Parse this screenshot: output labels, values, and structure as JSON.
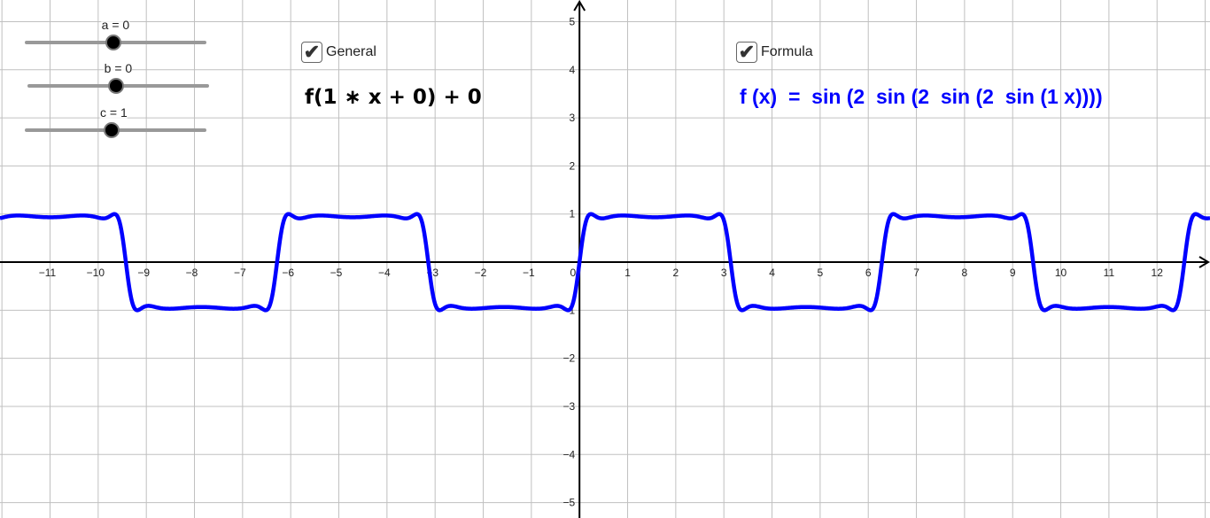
{
  "sliders": [
    {
      "label": "a = 0",
      "name": "a",
      "value": 0,
      "fraction": 0.49
    },
    {
      "label": "b = 0",
      "name": "b",
      "value": 0,
      "fraction": 0.49
    },
    {
      "label": "c = 1",
      "name": "c",
      "value": 1,
      "fraction": 0.48
    }
  ],
  "checkboxes": {
    "general": {
      "label": "General",
      "checked": true
    },
    "formula": {
      "label": "Formula",
      "checked": true
    }
  },
  "general_text": "f(1 ∗ x + 0) + 0",
  "formula_text": "f (x)  =  sin (2  sin (2  sin (2  sin (1 x))))",
  "colors": {
    "curve": "#0000ff",
    "formula": "#0000ff",
    "grid": "#c0c0c0",
    "axes": "#000000"
  },
  "chart_data": {
    "type": "line",
    "function": "sin(2 sin(2 sin(2 sin(1 x))))",
    "xlim": [
      -12.04,
      13.1
    ],
    "ylim": [
      -5.32,
      5.45
    ],
    "x_ticks": [
      -11,
      -10,
      -9,
      -8,
      -7,
      -6,
      -5,
      -4,
      -3,
      -2,
      -1,
      0,
      1,
      2,
      3,
      4,
      5,
      6,
      7,
      8,
      9,
      10,
      11,
      12
    ],
    "y_ticks": [
      -5,
      -4,
      -3,
      -2,
      -1,
      1,
      2,
      3,
      4,
      5
    ],
    "grid": true,
    "series": [
      {
        "color": "#0000ff"
      }
    ]
  }
}
